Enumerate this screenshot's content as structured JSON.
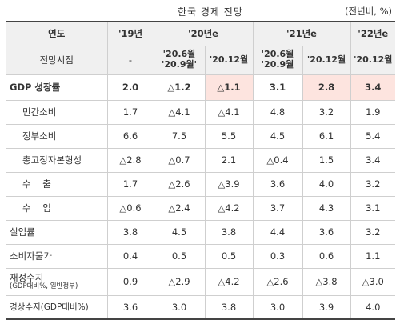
{
  "title": "한국 경제 전망",
  "unit": "(전년비, %)",
  "header": {
    "year_label": "연도",
    "view_label": "전망시점",
    "years": [
      "'19년",
      "'20년e",
      "'21년e",
      "'22년e"
    ],
    "points": [
      "-",
      "'20.6월\n'20.9월'",
      "'20.12월",
      "'20.6월\n'20.9월",
      "'20.12월",
      "'20.12월"
    ]
  },
  "rows": [
    {
      "label": "GDP 성장률",
      "values": [
        "2.0",
        "△1.2",
        "△1.1",
        "3.1",
        "2.8",
        "3.4"
      ]
    },
    {
      "label": "민간소비",
      "values": [
        "1.7",
        "△4.1",
        "△4.1",
        "4.8",
        "3.2",
        "1.9"
      ]
    },
    {
      "label": "정부소비",
      "values": [
        "6.6",
        "7.5",
        "5.5",
        "4.5",
        "6.1",
        "5.4"
      ]
    },
    {
      "label": "총고정자본형성",
      "values": [
        "△2.8",
        "△0.7",
        "2.1",
        "△0.4",
        "1.5",
        "3.4"
      ]
    },
    {
      "label": "수    출",
      "values": [
        "1.7",
        "△2.6",
        "△3.9",
        "3.6",
        "4.0",
        "3.2"
      ]
    },
    {
      "label": "수    입",
      "values": [
        "△0.6",
        "△2.4",
        "△4.2",
        "3.7",
        "4.3",
        "3.1"
      ]
    },
    {
      "label": "실업률",
      "values": [
        "3.8",
        "4.5",
        "3.8",
        "4.4",
        "3.6",
        "3.2"
      ]
    },
    {
      "label": "소비자물가",
      "values": [
        "0.4",
        "0.5",
        "0.5",
        "0.3",
        "0.6",
        "1.1"
      ]
    },
    {
      "label": "재정수지",
      "note": "(GDP대비%, 일반정부)",
      "values": [
        "0.9",
        "△2.9",
        "△4.2",
        "△2.6",
        "△3.8",
        "△3.0"
      ]
    },
    {
      "label": "경상수지(GDP대비%)",
      "values": [
        "3.6",
        "3.0",
        "3.8",
        "3.0",
        "3.9",
        "4.0"
      ]
    }
  ],
  "highlight_color": "#fde4df"
}
